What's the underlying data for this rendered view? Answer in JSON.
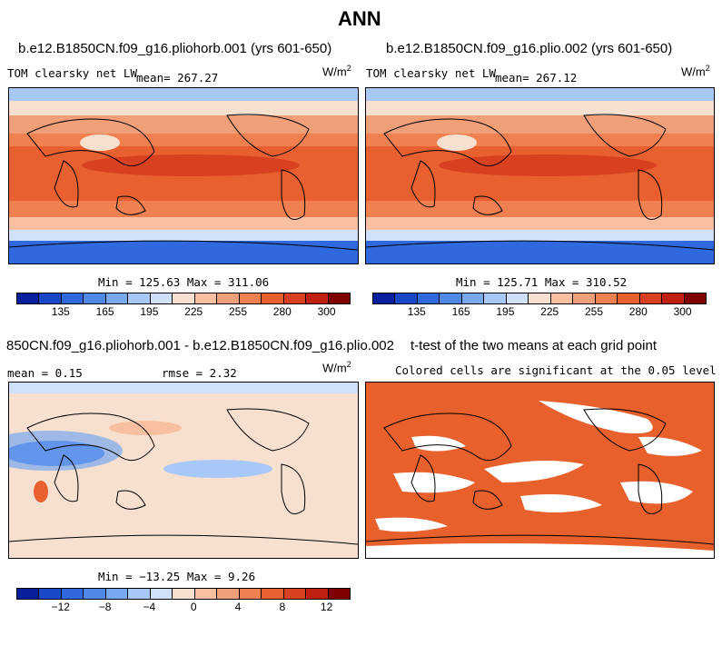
{
  "figure": {
    "title": "ANN"
  },
  "panel_a": {
    "title": "b.e12.B1850CN.f09_g16.pliohorb.001 (yrs 601-650)",
    "var": "TOM clearsky net LW",
    "mean": "mean= 267.27",
    "units": "W/m",
    "units_exp": "2",
    "minmax": "Min = 125.63 Max = 311.06"
  },
  "panel_b": {
    "title": "b.e12.B1850CN.f09_g16.plio.002 (yrs 601-650)",
    "var": "TOM clearsky net LW",
    "mean": "mean= 267.12",
    "units": "W/m",
    "units_exp": "2",
    "minmax": "Min = 125.71 Max = 310.52"
  },
  "panel_c": {
    "title": "850CN.f09_g16.pliohorb.001 - b.e12.B1850CN.f09_g16.plio.002",
    "mean": "mean =   0.15",
    "rmse": "rmse =   2.32",
    "units": "W/m",
    "units_exp": "2",
    "minmax": "Min = −13.25 Max =   9.26"
  },
  "panel_d": {
    "title": "t-test of the two means at each grid point",
    "subtitle": "Colored cells are significant at the 0.05 level",
    "color": "#e8602c"
  },
  "chart_data": [
    {
      "type": "heatmap",
      "title": "b.e12.B1850CN.f09_g16.pliohorb.001 (yrs 601-650)",
      "variable": "TOM clearsky net LW",
      "units": "W/m2",
      "mean": 267.27,
      "min": 125.63,
      "max": 311.06,
      "colorbar_ticks": [
        135,
        165,
        195,
        225,
        255,
        280,
        300
      ],
      "colorbar_colors": [
        "#08209c",
        "#1848c8",
        "#3068e0",
        "#5088e8",
        "#78a8f0",
        "#a8c8f8",
        "#d0e0f8",
        "#f8e0d0",
        "#f8c0a0",
        "#f0a078",
        "#f08050",
        "#e86030",
        "#d84020",
        "#c02010",
        "#800000"
      ]
    },
    {
      "type": "heatmap",
      "title": "b.e12.B1850CN.f09_g16.plio.002 (yrs 601-650)",
      "variable": "TOM clearsky net LW",
      "units": "W/m2",
      "mean": 267.12,
      "min": 125.71,
      "max": 310.52,
      "colorbar_ticks": [
        135,
        165,
        195,
        225,
        255,
        280,
        300
      ],
      "colorbar_colors": [
        "#08209c",
        "#1848c8",
        "#3068e0",
        "#5088e8",
        "#78a8f0",
        "#a8c8f8",
        "#d0e0f8",
        "#f8e0d0",
        "#f8c0a0",
        "#f0a078",
        "#f08050",
        "#e86030",
        "#d84020",
        "#c02010",
        "#800000"
      ]
    },
    {
      "type": "heatmap",
      "title": "850CN.f09_g16.pliohorb.001 - b.e12.B1850CN.f09_g16.plio.002",
      "units": "W/m2",
      "mean": 0.15,
      "rmse": 2.32,
      "min": -13.25,
      "max": 9.26,
      "colorbar_ticks": [
        -12,
        -8,
        -4,
        0,
        4,
        8,
        12
      ],
      "colorbar_colors": [
        "#08209c",
        "#1848c8",
        "#3068e0",
        "#5088e8",
        "#78a8f0",
        "#a8c8f8",
        "#d0e0f8",
        "#f8e0d0",
        "#f8c0a0",
        "#f0a078",
        "#f08050",
        "#e86030",
        "#d84020",
        "#c02010",
        "#800000"
      ]
    },
    {
      "type": "heatmap",
      "title": "t-test of the two means at each grid point",
      "subtitle": "Colored cells are significant at the 0.05 level",
      "significance_level": 0.05
    }
  ]
}
